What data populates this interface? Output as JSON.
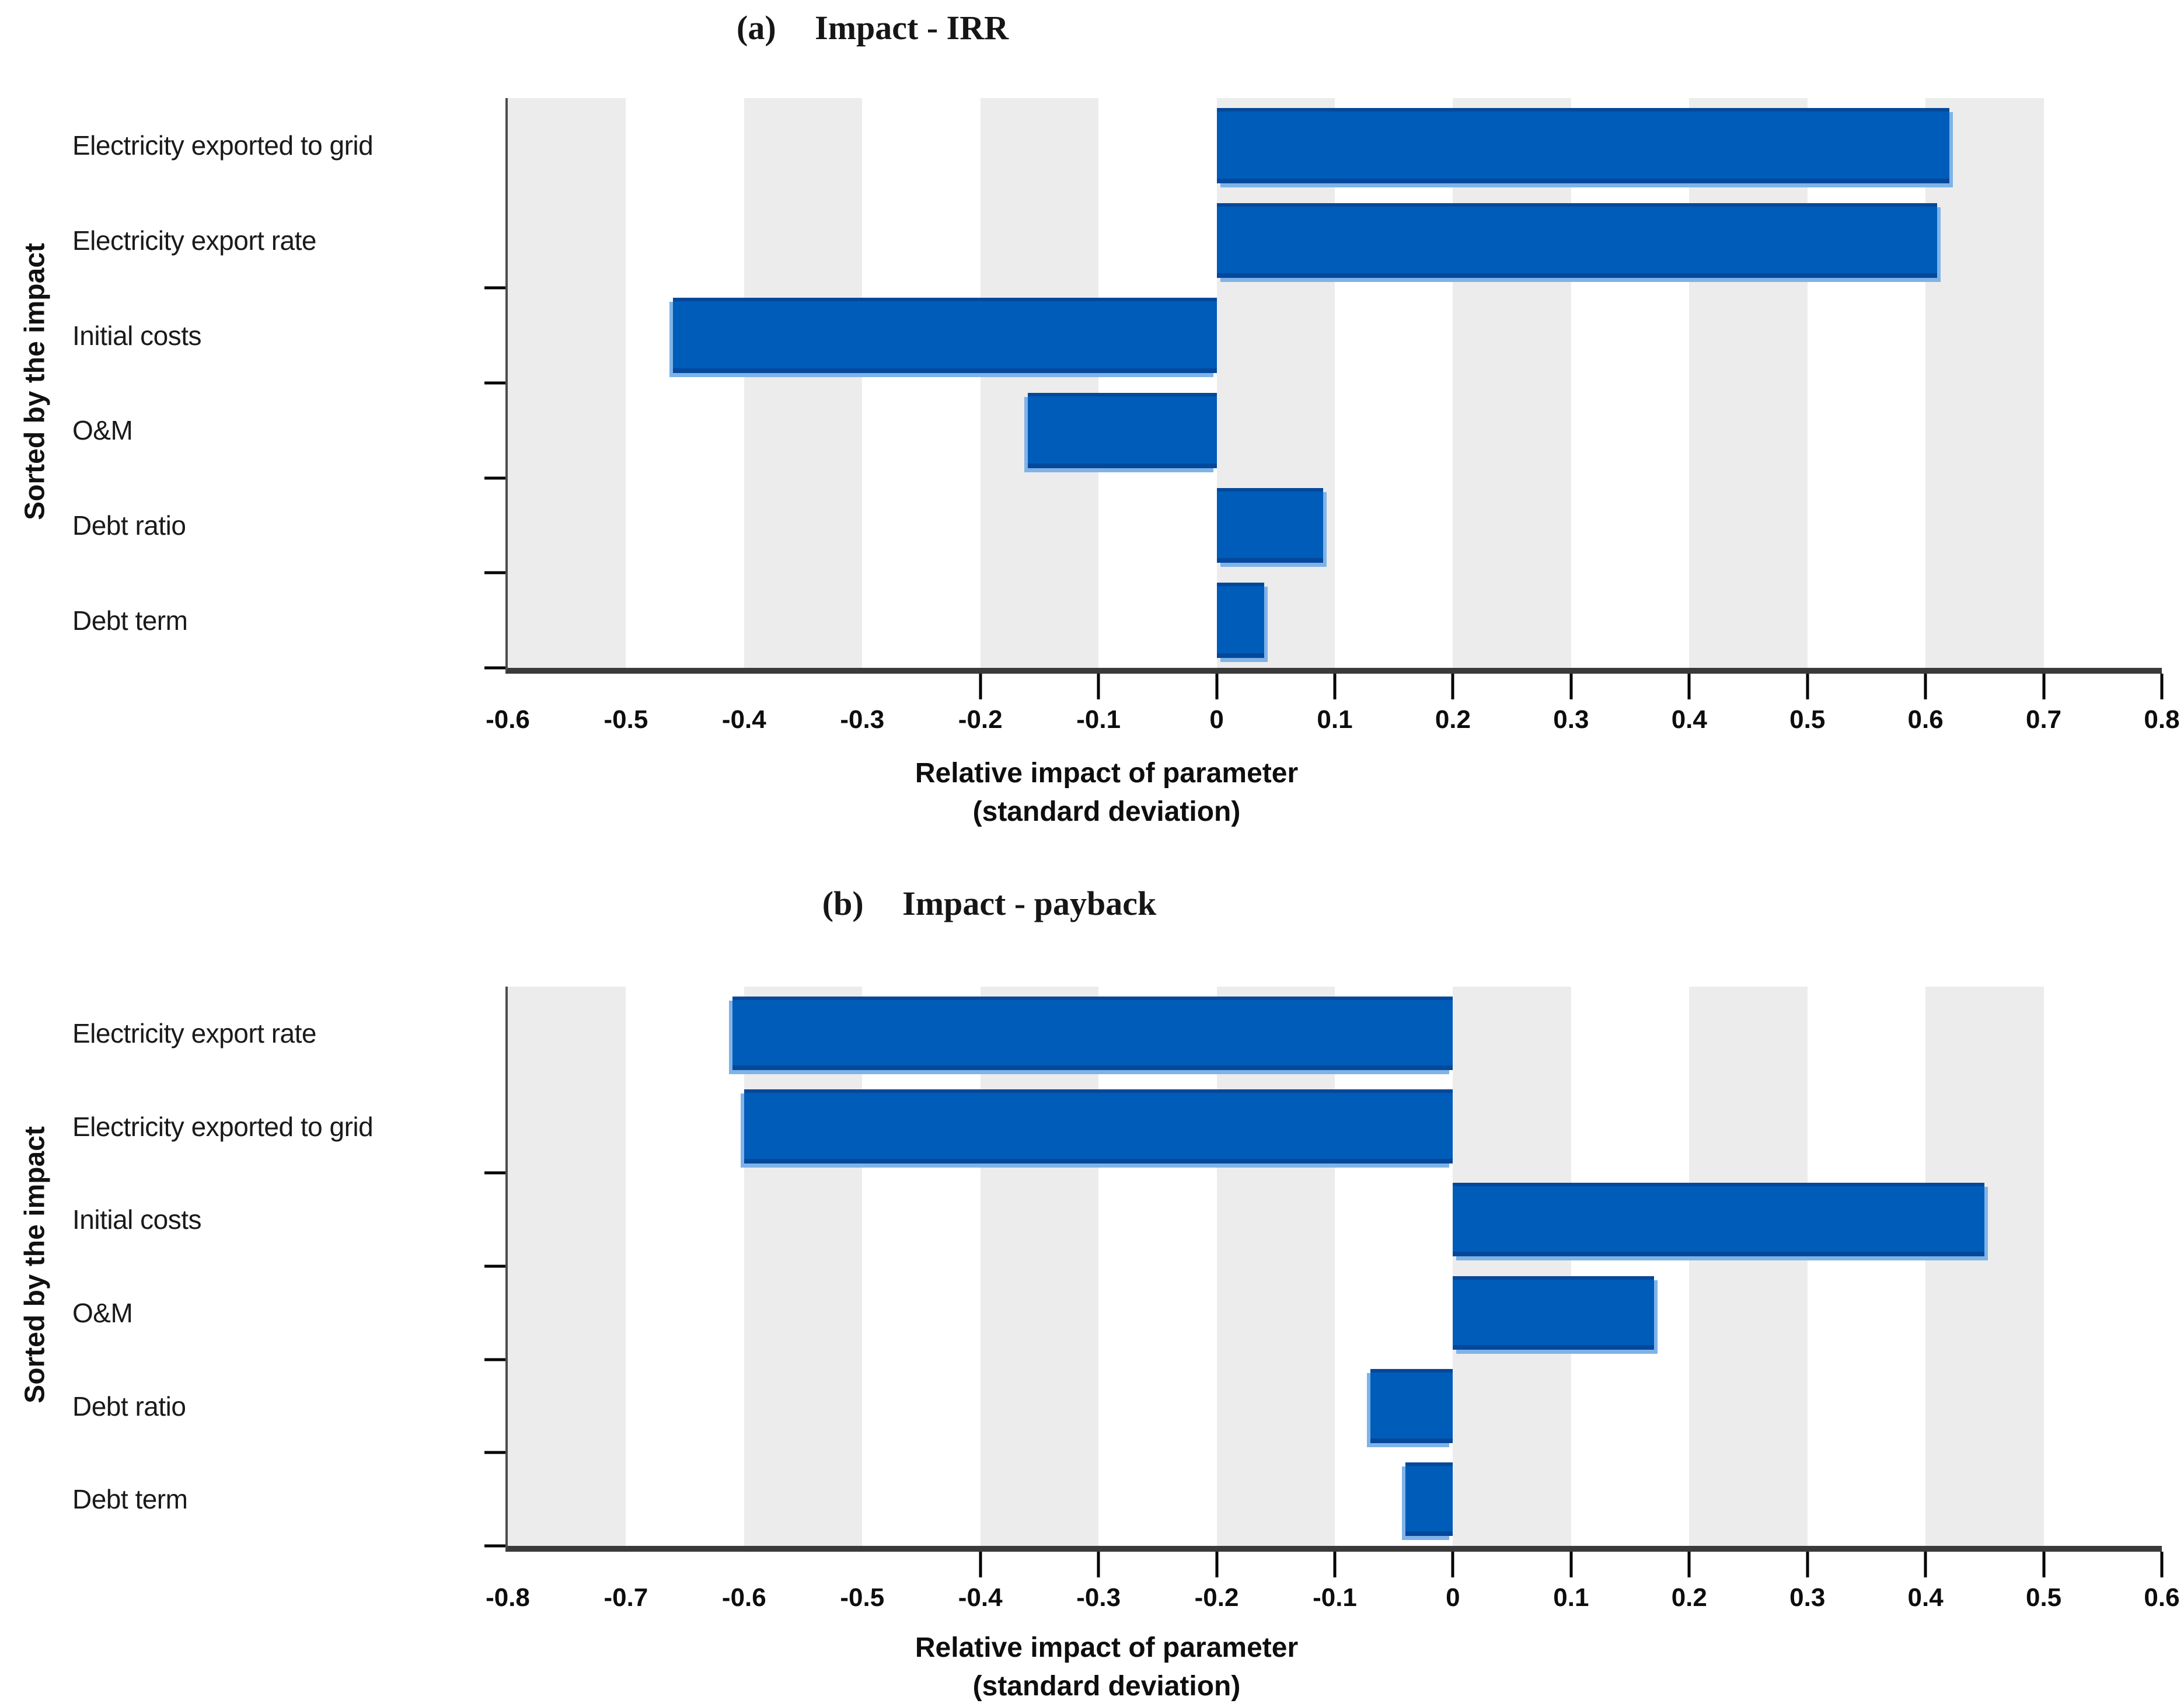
{
  "page": {
    "background": "#FFFFFF"
  },
  "colors": {
    "bar_fill": "#005CB9",
    "bar_edge_dark": "#05489A",
    "bar_edge_light": "#7FB3E8",
    "band_gray": "#ECECEC",
    "band_white": "#FFFFFF",
    "axis_line": "#3A3A3A",
    "yaxis_line": "#4D4D4D",
    "tick_mark": "#000000",
    "text": "#151515"
  },
  "chart_data": [
    {
      "type": "bar",
      "orientation": "horizontal",
      "panel_label": "(a)",
      "title": "Impact - IRR",
      "ylabel": "Sorted by the impact",
      "xlabel": "Relative impact of parameter",
      "xlabel_line2": "(standard deviation)",
      "xlim": [
        -0.6,
        0.8
      ],
      "band_width": 0.1,
      "grid_bands": "alternating 0.1-wide vertical gray/white bands",
      "xticks": [
        "-0.6",
        "-0.5",
        "-0.4",
        "-0.3",
        "-0.2",
        "-0.1",
        "0",
        "0.1",
        "0.2",
        "0.3",
        "0.4",
        "0.5",
        "0.6",
        "0.7",
        "0.8"
      ],
      "categories": [
        "Electricity exported to grid",
        "Electricity export rate",
        "Initial costs",
        "O&M",
        "Debt ratio",
        "Debt term"
      ],
      "values": [
        0.62,
        0.61,
        -0.46,
        -0.16,
        0.09,
        0.04
      ]
    },
    {
      "type": "bar",
      "orientation": "horizontal",
      "panel_label": "(b)",
      "title": "Impact - payback",
      "ylabel": "Sorted by the impact",
      "xlabel": "Relative impact of parameter",
      "xlabel_line2": "(standard deviation)",
      "xlim": [
        -0.8,
        0.6
      ],
      "band_width": 0.1,
      "grid_bands": "alternating 0.1-wide vertical gray/white bands",
      "xticks": [
        "-0.8",
        "-0.7",
        "-0.6",
        "-0.5",
        "-0.4",
        "-0.3",
        "-0.2",
        "-0.1",
        "0",
        "0.1",
        "0.2",
        "0.3",
        "0.4",
        "0.5",
        "0.6"
      ],
      "categories": [
        "Electricity export rate",
        "Electricity exported to grid",
        "Initial costs",
        "O&M",
        "Debt ratio",
        "Debt term"
      ],
      "values": [
        -0.61,
        -0.6,
        0.45,
        0.17,
        -0.07,
        -0.04
      ]
    }
  ]
}
